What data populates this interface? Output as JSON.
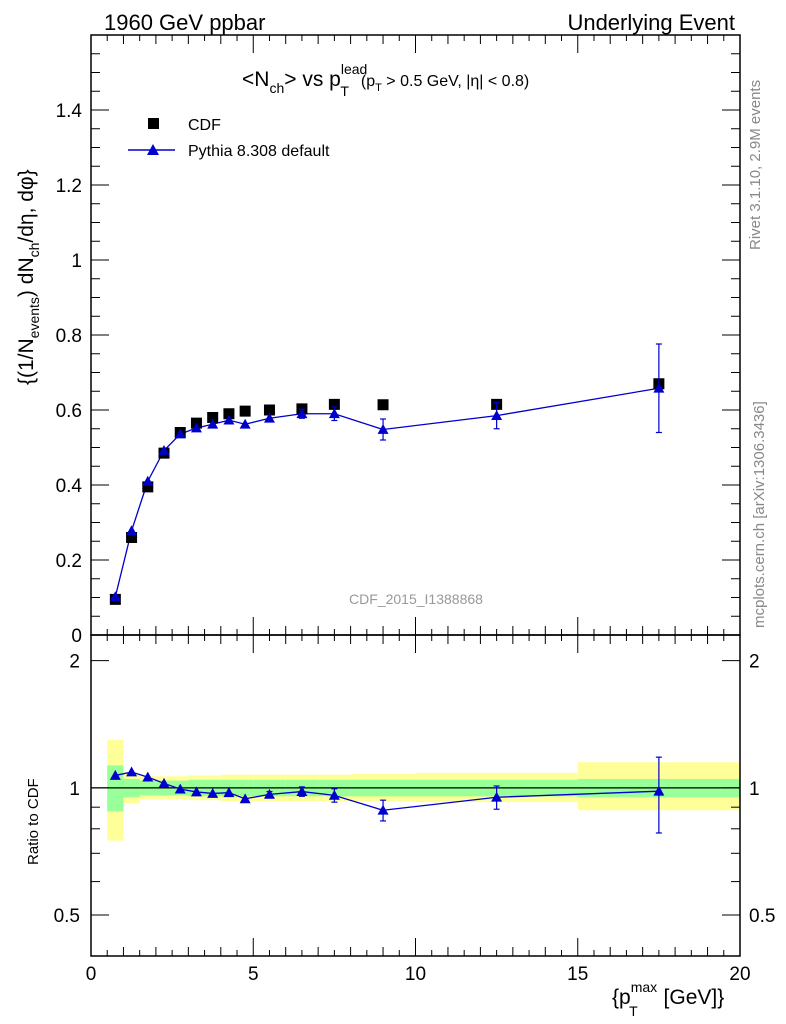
{
  "header": {
    "left": "1960 GeV ppbar",
    "right": "Underlying Event"
  },
  "side_labels": {
    "rivet": "Rivet 3.1.10,  2.9M events",
    "mcplots": "mcplots.cern.ch [arXiv:1306.3436]"
  },
  "watermark": "CDF_2015_I1388868",
  "title": {
    "part1": "<N",
    "sub1": "ch",
    "part2": "> vs p",
    "sup2": "lead",
    "sub2": "T",
    "cond_p": "(p",
    "cond_sub": "T",
    "cond_rest": " > 0.5 GeV, |η| < 0.8)"
  },
  "ylabel": {
    "p1": "{(1/N",
    "s1": "events",
    "p2": ") dN",
    "s2": "ch",
    "p3": "/dη, dφ}"
  },
  "ratio_ylabel": "Ratio to CDF",
  "xlabel": {
    "p1": "{p",
    "sup": "max",
    "sub": "T",
    "p2": " [GeV]}"
  },
  "legend": {
    "data_label": "CDF",
    "mc_label": "Pythia 8.308 default"
  },
  "colors": {
    "data": "#000000",
    "mc": "#0000cc",
    "band_inner": "#99ff99",
    "band_outer": "#ffff99"
  },
  "chart_data": {
    "type": "scatter",
    "x_range": [
      0,
      20
    ],
    "main_ylim": [
      0,
      1.6
    ],
    "ratio_ylim": [
      0.4,
      2.3
    ],
    "x_ticks": [
      0,
      5,
      10,
      15,
      20
    ],
    "main_y_ticks": [
      0,
      0.2,
      0.4,
      0.6,
      0.8,
      1,
      1.2,
      1.4
    ],
    "ratio_y_ticks": [
      0.5,
      1,
      2
    ],
    "data_series": {
      "name": "CDF",
      "x": [
        0.75,
        1.25,
        1.75,
        2.25,
        2.75,
        3.25,
        3.75,
        4.25,
        4.75,
        5.5,
        6.5,
        7.5,
        9.0,
        12.5,
        17.5
      ],
      "y": [
        0.095,
        0.26,
        0.395,
        0.485,
        0.54,
        0.565,
        0.58,
        0.59,
        0.597,
        0.6,
        0.603,
        0.615,
        0.614,
        0.615,
        0.67
      ]
    },
    "mc_series": {
      "name": "Pythia 8.308 default",
      "x": [
        0.75,
        1.25,
        1.75,
        2.25,
        2.75,
        3.25,
        3.75,
        4.25,
        4.75,
        5.5,
        6.5,
        7.5,
        9.0,
        12.5,
        17.5
      ],
      "y": [
        0.102,
        0.278,
        0.41,
        0.492,
        0.536,
        0.552,
        0.562,
        0.573,
        0.562,
        0.578,
        0.59,
        0.59,
        0.548,
        0.585,
        0.658
      ],
      "yerr": [
        0.002,
        0.003,
        0.003,
        0.004,
        0.004,
        0.004,
        0.005,
        0.005,
        0.005,
        0.006,
        0.012,
        0.018,
        0.028,
        0.035,
        0.118
      ]
    },
    "ratio_series": {
      "x": [
        0.75,
        1.25,
        1.75,
        2.25,
        2.75,
        3.25,
        3.75,
        4.25,
        4.75,
        5.5,
        6.5,
        7.5,
        9.0,
        12.5,
        17.5
      ],
      "y": [
        1.07,
        1.09,
        1.06,
        1.025,
        0.993,
        0.978,
        0.97,
        0.974,
        0.942,
        0.965,
        0.98,
        0.96,
        0.885,
        0.95,
        0.982
      ],
      "yerr": [
        0.01,
        0.01,
        0.01,
        0.01,
        0.01,
        0.01,
        0.01,
        0.01,
        0.01,
        0.015,
        0.025,
        0.035,
        0.05,
        0.06,
        0.2
      ]
    },
    "bands": {
      "x_edges": [
        0.5,
        1.0,
        1.5,
        2.0,
        2.5,
        3.0,
        3.5,
        4.0,
        4.5,
        5.0,
        6.0,
        7.0,
        8.0,
        10.0,
        15.0,
        20.0
      ],
      "inner_lo": [
        0.88,
        0.95,
        0.96,
        0.96,
        0.96,
        0.955,
        0.955,
        0.955,
        0.955,
        0.955,
        0.955,
        0.955,
        0.955,
        0.955,
        0.95
      ],
      "inner_hi": [
        1.13,
        1.05,
        1.04,
        1.04,
        1.04,
        1.045,
        1.045,
        1.045,
        1.045,
        1.045,
        1.045,
        1.045,
        1.045,
        1.045,
        1.05
      ],
      "outer_lo": [
        0.75,
        0.92,
        0.94,
        0.94,
        0.94,
        0.935,
        0.935,
        0.93,
        0.93,
        0.93,
        0.93,
        0.93,
        0.93,
        0.925,
        0.885
      ],
      "outer_hi": [
        1.3,
        1.08,
        1.065,
        1.065,
        1.065,
        1.07,
        1.07,
        1.075,
        1.075,
        1.075,
        1.075,
        1.075,
        1.08,
        1.085,
        1.15
      ]
    }
  }
}
